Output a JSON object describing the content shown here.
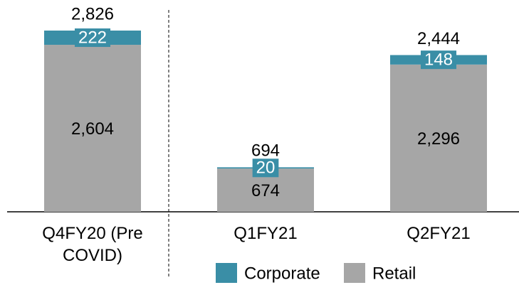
{
  "chart_data": {
    "type": "stacked_bar",
    "categories": [
      "Q4FY20 (Pre COVID)",
      "Q1FY21",
      "Q2FY21"
    ],
    "series": [
      {
        "name": "Retail",
        "color": "#a6a6a6",
        "values": [
          2604,
          674,
          2296
        ],
        "value_labels": [
          "2,604",
          "674",
          "2,296"
        ]
      },
      {
        "name": "Corporate",
        "color": "#3a8ea6",
        "values": [
          222,
          20,
          148
        ]
      }
    ],
    "totals": [
      2826,
      694,
      2444
    ],
    "total_labels": [
      "2,826",
      "694",
      "2,444"
    ],
    "legend": "bottom"
  }
}
